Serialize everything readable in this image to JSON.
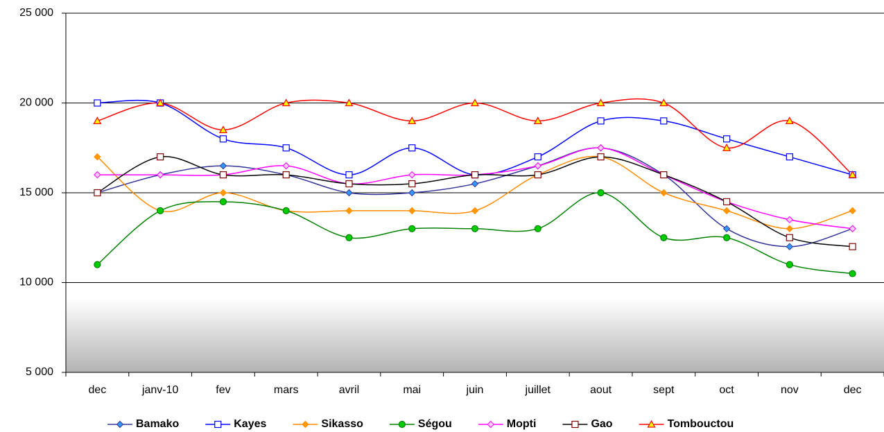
{
  "chart_data": {
    "type": "line",
    "smooth": true,
    "grid": true,
    "legend": "bottom",
    "categories": [
      "dec",
      "janv-10",
      "fev",
      "mars",
      "avril",
      "mai",
      "juin",
      "juillet",
      "aout",
      "sept",
      "oct",
      "nov",
      "dec"
    ],
    "ylim": [
      5000,
      25000
    ],
    "yticks": [
      {
        "value": 5000,
        "label": "5 000"
      },
      {
        "value": 10000,
        "label": "10 000"
      },
      {
        "value": 15000,
        "label": "15 000"
      },
      {
        "value": 20000,
        "label": "20 000"
      },
      {
        "value": 25000,
        "label": "25 000"
      }
    ],
    "series": [
      {
        "name": "Bamako",
        "color": "#333399",
        "marker": "diamond",
        "marker_fill": "#3399ff",
        "values": [
          15000,
          16000,
          16500,
          16000,
          15000,
          15000,
          15500,
          16500,
          17500,
          16000,
          13000,
          12000,
          13000
        ]
      },
      {
        "name": "Kayes",
        "color": "#0000ff",
        "marker": "square",
        "marker_fill": "#ffffff",
        "values": [
          20000,
          20000,
          18000,
          17500,
          16000,
          17500,
          16000,
          17000,
          19000,
          19000,
          18000,
          17000,
          16000
        ]
      },
      {
        "name": "Sikasso",
        "color": "#ff8c00",
        "marker": "diamond",
        "marker_fill": "#ff9900",
        "values": [
          17000,
          14000,
          15000,
          14000,
          14000,
          14000,
          14000,
          16000,
          17000,
          15000,
          14000,
          13000,
          14000
        ]
      },
      {
        "name": "Ségou",
        "color": "#008000",
        "marker": "circle",
        "marker_fill": "#00cc00",
        "values": [
          11000,
          14000,
          14500,
          14000,
          12500,
          13000,
          13000,
          13000,
          15000,
          12500,
          12500,
          11000,
          10500
        ]
      },
      {
        "name": "Mopti",
        "color": "#ff00ff",
        "marker": "diamond",
        "marker_fill": "#ffccff",
        "values": [
          16000,
          16000,
          16000,
          16500,
          15500,
          16000,
          16000,
          16500,
          17500,
          16000,
          14500,
          13500,
          13000
        ]
      },
      {
        "name": "Gao",
        "color": "#000000",
        "marker": "square",
        "marker_fill": "#ffffff",
        "marker_stroke": "#800000",
        "values": [
          15000,
          17000,
          16000,
          16000,
          15500,
          15500,
          16000,
          16000,
          17000,
          16000,
          14500,
          12500,
          12000
        ]
      },
      {
        "name": "Tombouctou",
        "color": "#ff0000",
        "marker": "triangle",
        "marker_fill": "#ffff00",
        "values": [
          19000,
          20000,
          18500,
          20000,
          20000,
          19000,
          20000,
          19000,
          20000,
          20000,
          17500,
          19000,
          16000
        ]
      }
    ]
  }
}
